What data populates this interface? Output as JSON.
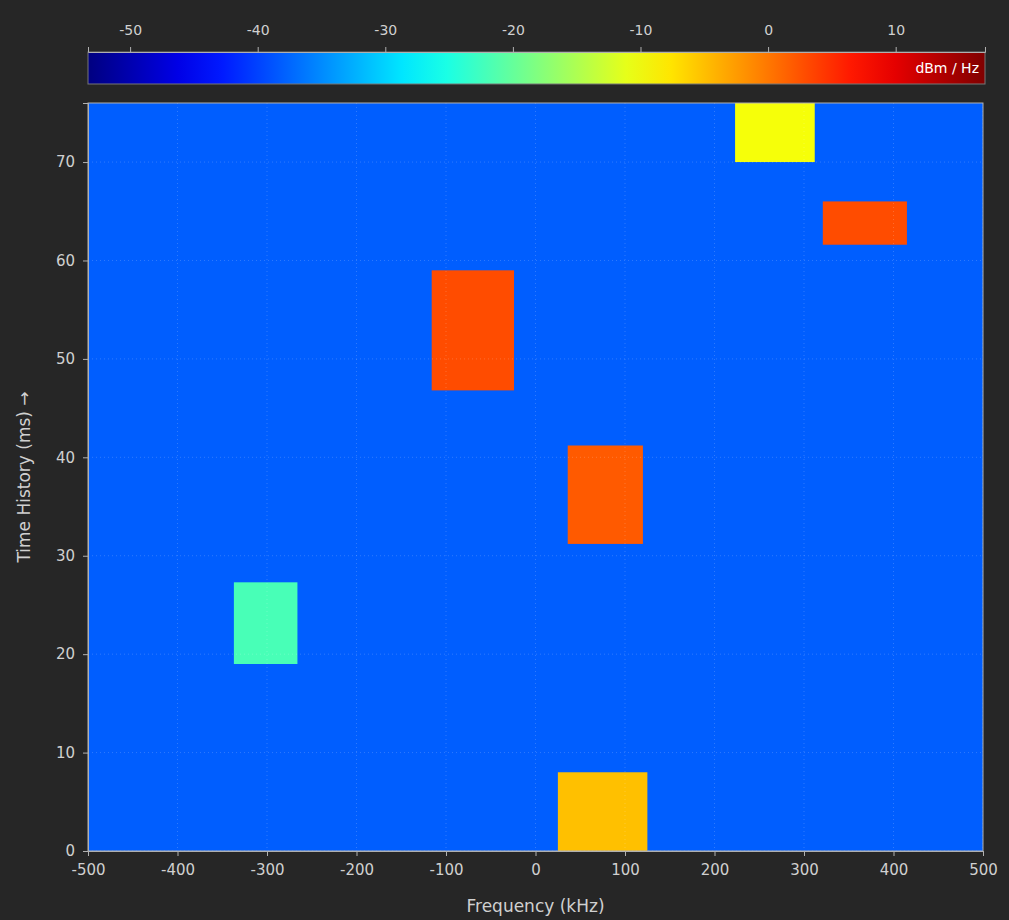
{
  "chart_data": {
    "type": "spectrogram",
    "xlabel": "Frequency (kHz)",
    "ylabel": "Time History (ms) →",
    "xlim": [
      -500,
      500
    ],
    "xticks": [
      -500,
      -400,
      -300,
      -200,
      -100,
      0,
      100,
      200,
      300,
      400,
      500
    ],
    "ylim": [
      0,
      76
    ],
    "yticks": [
      0,
      10,
      20,
      30,
      40,
      50,
      60,
      70
    ],
    "grid": true,
    "colorbar": {
      "label": "dBm / Hz",
      "range": [
        -53.3,
        17
      ],
      "ticks": [
        -50,
        -40,
        -30,
        -20,
        -10,
        0,
        10
      ]
    },
    "background_level": -38,
    "bursts": [
      {
        "freq": [
          25,
          125
        ],
        "time": [
          0,
          8
        ],
        "level": -5
      },
      {
        "freq": [
          -337,
          -266
        ],
        "time": [
          19,
          27.3
        ],
        "level": -22
      },
      {
        "freq": [
          36,
          120
        ],
        "time": [
          31.2,
          41.2
        ],
        "level": 2
      },
      {
        "freq": [
          -116,
          -24
        ],
        "time": [
          46.8,
          59
        ],
        "level": 3
      },
      {
        "freq": [
          321,
          415
        ],
        "time": [
          61.6,
          66
        ],
        "level": 3
      },
      {
        "freq": [
          223,
          312
        ],
        "time": [
          70,
          76
        ],
        "level": -10
      }
    ]
  }
}
